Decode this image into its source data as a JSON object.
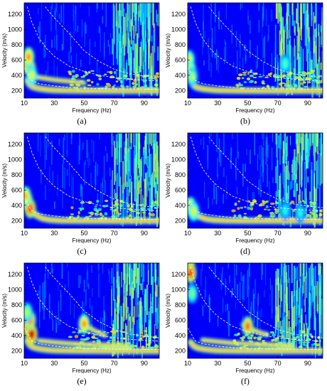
{
  "figure": {
    "panels": [
      {
        "id": "a",
        "caption": "(a)"
      },
      {
        "id": "b",
        "caption": "(b)"
      },
      {
        "id": "c",
        "caption": "(c)"
      },
      {
        "id": "d",
        "caption": "(d)"
      },
      {
        "id": "e",
        "caption": "(e)"
      },
      {
        "id": "f",
        "caption": "(f)"
      }
    ]
  },
  "chart_data": [
    {
      "type": "heatmap",
      "panel": "(a)",
      "xlabel": "Frequency (Hz)",
      "ylabel": "Velocity (m/s)",
      "xlim": [
        10,
        100
      ],
      "ylim": [
        100,
        1350
      ],
      "xticks": [
        10,
        30,
        50,
        70,
        90
      ],
      "yticks": [
        200,
        400,
        600,
        800,
        1000,
        1200
      ],
      "grid": false,
      "colormap": "jet",
      "dashed_curves": [
        {
          "x": [
            12,
            15,
            20,
            25,
            30,
            40,
            50,
            60,
            70,
            80,
            90,
            100
          ],
          "y": [
            1300,
            1100,
            880,
            750,
            650,
            520,
            450,
            400,
            370,
            350,
            335,
            325
          ]
        },
        {
          "x": [
            24,
            28,
            35,
            40,
            50,
            60,
            70,
            80,
            90,
            100
          ],
          "y": [
            1300,
            1200,
            1050,
            950,
            720,
            580,
            480,
            420,
            390,
            370
          ]
        },
        {
          "x": [
            10,
            15,
            20,
            30,
            40,
            50,
            60,
            70,
            80,
            90,
            100
          ],
          "y": [
            500,
            330,
            290,
            260,
            240,
            230,
            225,
            222,
            220,
            218,
            216
          ]
        }
      ],
      "energy_ridges": [
        {
          "x": [
            12,
            14,
            16,
            20,
            25,
            30,
            40,
            50,
            60,
            70,
            80,
            90,
            100
          ],
          "y": [
            330,
            270,
            245,
            225,
            212,
            205,
            200,
            198,
            197,
            196,
            195,
            195,
            195
          ]
        },
        {
          "x": [
            13,
            16,
            20,
            30,
            40,
            50
          ],
          "y": [
            420,
            390,
            370,
            340,
            320,
            300
          ]
        }
      ],
      "energy_spots": [
        {
          "x": 12,
          "y": 560,
          "level": 0.95
        },
        {
          "x": 14,
          "y": 480,
          "level": 0.9
        },
        {
          "x": 13,
          "y": 640,
          "level": 0.75
        },
        {
          "x": 15,
          "y": 400,
          "level": 0.6
        }
      ],
      "noise_from_x": 68
    },
    {
      "type": "heatmap",
      "panel": "(b)",
      "xlabel": "Frequency (Hz)",
      "ylabel": "Velocity (m/s)",
      "xlim": [
        10,
        100
      ],
      "ylim": [
        100,
        1350
      ],
      "xticks": [
        10,
        30,
        50,
        70,
        90
      ],
      "yticks": [
        200,
        400,
        600,
        800,
        1000,
        1200
      ],
      "grid": false,
      "colormap": "jet",
      "dashed_curves": [
        {
          "x": [
            12,
            15,
            20,
            25,
            30,
            40,
            50,
            60,
            70,
            80,
            90,
            100
          ],
          "y": [
            1300,
            1100,
            880,
            750,
            650,
            520,
            450,
            400,
            370,
            350,
            335,
            325
          ]
        },
        {
          "x": [
            24,
            28,
            35,
            40,
            50,
            60,
            70,
            80,
            90,
            100
          ],
          "y": [
            1300,
            1200,
            1050,
            950,
            720,
            580,
            480,
            420,
            390,
            370
          ]
        },
        {
          "x": [
            10,
            15,
            20,
            30,
            40,
            50,
            60,
            70,
            80,
            90,
            100
          ],
          "y": [
            500,
            330,
            290,
            260,
            240,
            230,
            225,
            222,
            220,
            218,
            216
          ]
        }
      ],
      "energy_ridges": [
        {
          "x": [
            12,
            14,
            16,
            20,
            25,
            30,
            40,
            50,
            60,
            70,
            80,
            90,
            100
          ],
          "y": [
            320,
            265,
            240,
            222,
            210,
            203,
            199,
            197,
            196,
            195,
            195,
            195,
            195
          ]
        }
      ],
      "energy_spots": [
        {
          "x": 11,
          "y": 600,
          "level": 0.6
        },
        {
          "x": 12,
          "y": 460,
          "level": 0.65
        },
        {
          "x": 13,
          "y": 380,
          "level": 0.55
        },
        {
          "x": 75,
          "y": 550,
          "level": 0.45
        }
      ],
      "noise_from_x": 68
    },
    {
      "type": "heatmap",
      "panel": "(c)",
      "xlabel": "Frequency (Hz)",
      "ylabel": "Velocity (m/s)",
      "xlim": [
        10,
        100
      ],
      "ylim": [
        100,
        1350
      ],
      "xticks": [
        10,
        30,
        50,
        70,
        90
      ],
      "yticks": [
        200,
        400,
        600,
        800,
        1000,
        1200
      ],
      "grid": false,
      "colormap": "jet",
      "dashed_curves": [
        {
          "x": [
            12,
            15,
            20,
            25,
            30,
            40,
            50,
            60,
            70,
            80,
            90,
            100
          ],
          "y": [
            1300,
            1100,
            880,
            750,
            650,
            520,
            450,
            400,
            370,
            350,
            335,
            325
          ]
        },
        {
          "x": [
            24,
            28,
            35,
            40,
            50,
            60,
            70,
            80,
            90,
            100
          ],
          "y": [
            1300,
            1200,
            1050,
            950,
            720,
            580,
            480,
            420,
            390,
            370
          ]
        },
        {
          "x": [
            10,
            15,
            20,
            30,
            40,
            50,
            60,
            70,
            80,
            90,
            100
          ],
          "y": [
            500,
            330,
            290,
            260,
            240,
            230,
            225,
            222,
            220,
            218,
            216
          ]
        }
      ],
      "energy_ridges": [
        {
          "x": [
            11,
            13,
            15,
            18,
            22,
            27,
            35,
            50,
            70,
            100
          ],
          "y": [
            500,
            400,
            330,
            270,
            230,
            210,
            200,
            197,
            195,
            195
          ]
        }
      ],
      "energy_spots": [
        {
          "x": 12,
          "y": 450,
          "level": 0.95
        },
        {
          "x": 14,
          "y": 360,
          "level": 0.85
        },
        {
          "x": 11,
          "y": 520,
          "level": 0.7
        }
      ],
      "noise_from_x": 68
    },
    {
      "type": "heatmap",
      "panel": "(d)",
      "xlabel": "Frequency (Hz)",
      "ylabel": "Velocity (m/s)",
      "xlim": [
        10,
        100
      ],
      "ylim": [
        100,
        1350
      ],
      "xticks": [
        10,
        30,
        50,
        70,
        90
      ],
      "yticks": [
        200,
        400,
        600,
        800,
        1000,
        1200
      ],
      "grid": false,
      "colormap": "jet",
      "dashed_curves": [
        {
          "x": [
            12,
            15,
            20,
            25,
            30,
            40,
            50,
            60,
            70,
            80,
            90,
            100
          ],
          "y": [
            1300,
            1100,
            880,
            750,
            650,
            520,
            450,
            400,
            370,
            350,
            335,
            325
          ]
        },
        {
          "x": [
            24,
            28,
            35,
            40,
            50,
            60,
            70,
            80,
            90,
            100
          ],
          "y": [
            1300,
            1200,
            1050,
            950,
            720,
            580,
            480,
            420,
            390,
            370
          ]
        },
        {
          "x": [
            10,
            15,
            20,
            30,
            40,
            50,
            60,
            70,
            80,
            90,
            100
          ],
          "y": [
            500,
            330,
            290,
            260,
            240,
            230,
            225,
            222,
            220,
            218,
            216
          ]
        }
      ],
      "energy_ridges": [
        {
          "x": [
            11,
            13,
            15,
            18,
            22,
            27,
            35,
            50,
            70,
            100
          ],
          "y": [
            420,
            340,
            290,
            250,
            222,
            208,
            200,
            197,
            195,
            195
          ]
        }
      ],
      "energy_spots": [
        {
          "x": 12,
          "y": 380,
          "level": 0.7
        },
        {
          "x": 14,
          "y": 320,
          "level": 0.6
        },
        {
          "x": 75,
          "y": 330,
          "level": 0.4
        },
        {
          "x": 85,
          "y": 300,
          "level": 0.4
        }
      ],
      "noise_from_x": 68
    },
    {
      "type": "heatmap",
      "panel": "(e)",
      "xlabel": "Frequency (Hz)",
      "ylabel": "Velocity (m/s)",
      "xlim": [
        10,
        100
      ],
      "ylim": [
        100,
        1350
      ],
      "xticks": [
        10,
        30,
        50,
        70,
        90
      ],
      "yticks": [
        200,
        400,
        600,
        800,
        1000,
        1200
      ],
      "grid": false,
      "colormap": "jet",
      "dashed_curves": [
        {
          "x": [
            12,
            15,
            20,
            25,
            30,
            40,
            50,
            60,
            70,
            80,
            90,
            100
          ],
          "y": [
            1300,
            1100,
            880,
            750,
            650,
            520,
            450,
            400,
            370,
            350,
            335,
            325
          ]
        },
        {
          "x": [
            24,
            28,
            35,
            40,
            50,
            60,
            70,
            80,
            90,
            100
          ],
          "y": [
            1300,
            1200,
            1050,
            950,
            720,
            580,
            480,
            420,
            390,
            370
          ]
        },
        {
          "x": [
            10,
            15,
            20,
            30,
            40,
            50,
            60,
            70,
            80,
            90,
            100
          ],
          "y": [
            500,
            330,
            290,
            260,
            240,
            230,
            225,
            222,
            220,
            218,
            216
          ]
        }
      ],
      "energy_ridges": [
        {
          "x": [
            12,
            14,
            16,
            20,
            25,
            30,
            40,
            50,
            60,
            70,
            80,
            90,
            100
          ],
          "y": [
            330,
            270,
            245,
            225,
            212,
            205,
            200,
            198,
            197,
            196,
            195,
            195,
            195
          ]
        },
        {
          "x": [
            48,
            52,
            56,
            60,
            64
          ],
          "y": [
            560,
            520,
            470,
            430,
            400
          ]
        },
        {
          "x": [
            20,
            30,
            40,
            50,
            60,
            70,
            80
          ],
          "y": [
            330,
            310,
            295,
            285,
            278,
            272,
            268
          ]
        }
      ],
      "energy_spots": [
        {
          "x": 13,
          "y": 500,
          "level": 1.0
        },
        {
          "x": 15,
          "y": 420,
          "level": 0.95
        },
        {
          "x": 14,
          "y": 600,
          "level": 0.8
        },
        {
          "x": 12,
          "y": 700,
          "level": 0.55
        },
        {
          "x": 50,
          "y": 550,
          "level": 0.75
        }
      ],
      "noise_from_x": 68
    },
    {
      "type": "heatmap",
      "panel": "(f)",
      "xlabel": "Frequency (Hz)",
      "ylabel": "Velocity (m/s)",
      "xlim": [
        10,
        100
      ],
      "ylim": [
        100,
        1350
      ],
      "xticks": [
        10,
        30,
        50,
        70,
        90
      ],
      "yticks": [
        200,
        400,
        600,
        800,
        1000,
        1200
      ],
      "grid": false,
      "colormap": "jet",
      "dashed_curves": [
        {
          "x": [
            12,
            15,
            20,
            25,
            30,
            40,
            50,
            60,
            70,
            80,
            90,
            100
          ],
          "y": [
            1300,
            1100,
            880,
            750,
            650,
            520,
            450,
            400,
            370,
            350,
            335,
            325
          ]
        },
        {
          "x": [
            24,
            28,
            35,
            40,
            50,
            60,
            70,
            80,
            90,
            100
          ],
          "y": [
            1300,
            1200,
            1050,
            950,
            720,
            580,
            480,
            420,
            390,
            370
          ]
        },
        {
          "x": [
            10,
            15,
            20,
            30,
            40,
            50,
            60,
            70,
            80,
            90,
            100
          ],
          "y": [
            500,
            330,
            290,
            260,
            240,
            230,
            225,
            222,
            220,
            218,
            216
          ]
        }
      ],
      "energy_ridges": [
        {
          "x": [
            12,
            14,
            16,
            20,
            25,
            30,
            40,
            50,
            60,
            70,
            80,
            90,
            100
          ],
          "y": [
            310,
            262,
            240,
            222,
            210,
            203,
            199,
            197,
            196,
            195,
            195,
            195,
            195
          ]
        },
        {
          "x": [
            47,
            51,
            55,
            59,
            63
          ],
          "y": [
            540,
            500,
            460,
            430,
            410
          ]
        },
        {
          "x": [
            20,
            30,
            40,
            50,
            60,
            70,
            80
          ],
          "y": [
            340,
            318,
            300,
            290,
            282,
            276,
            270
          ]
        }
      ],
      "energy_spots": [
        {
          "x": 11,
          "y": 1300,
          "level": 1.0
        },
        {
          "x": 12,
          "y": 1220,
          "level": 0.85
        },
        {
          "x": 13,
          "y": 950,
          "level": 0.5
        },
        {
          "x": 50,
          "y": 520,
          "level": 0.8
        }
      ],
      "noise_from_x": 68
    }
  ]
}
